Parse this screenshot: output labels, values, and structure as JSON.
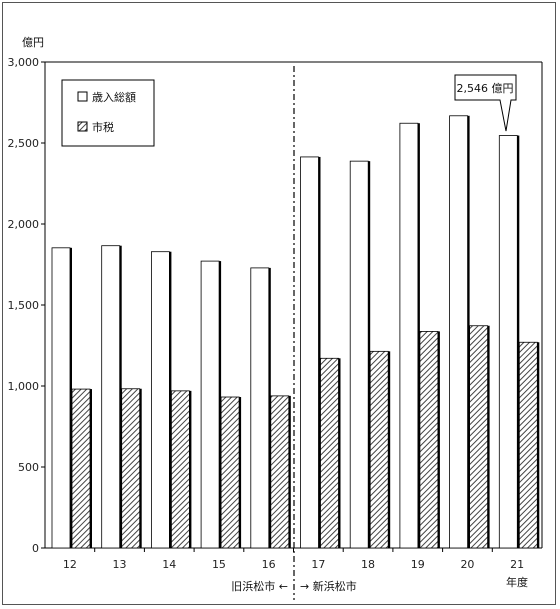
{
  "chart_data": {
    "type": "bar",
    "categories": [
      "12",
      "13",
      "14",
      "15",
      "16",
      "17",
      "18",
      "19",
      "20",
      "21"
    ],
    "series": [
      {
        "name": "歳入総額",
        "values": [
          1853,
          1866,
          1829,
          1771,
          1729,
          2414,
          2388,
          2622,
          2668,
          2546
        ],
        "pattern": "white"
      },
      {
        "name": "市税",
        "values": [
          981,
          983,
          970,
          932,
          939,
          1171,
          1214,
          1337,
          1372,
          1270
        ],
        "pattern": "hatched"
      }
    ],
    "ylabel": "億円",
    "xlabel": "年度",
    "ylim": [
      0,
      3000
    ],
    "yticks": [
      "0",
      "500",
      "1,000",
      "1,500",
      "2,000",
      "2,500",
      "3,000"
    ],
    "legend_position": "top-left",
    "callout": {
      "text": "2,546 億円",
      "category": "21"
    },
    "divider": {
      "left_label": "旧浜松市 ←",
      "right_label": "→ 新浜松市"
    },
    "colors": {
      "bar_fill": "#ffffff",
      "bar_edge": "#000000",
      "hatch": "#444444"
    }
  }
}
